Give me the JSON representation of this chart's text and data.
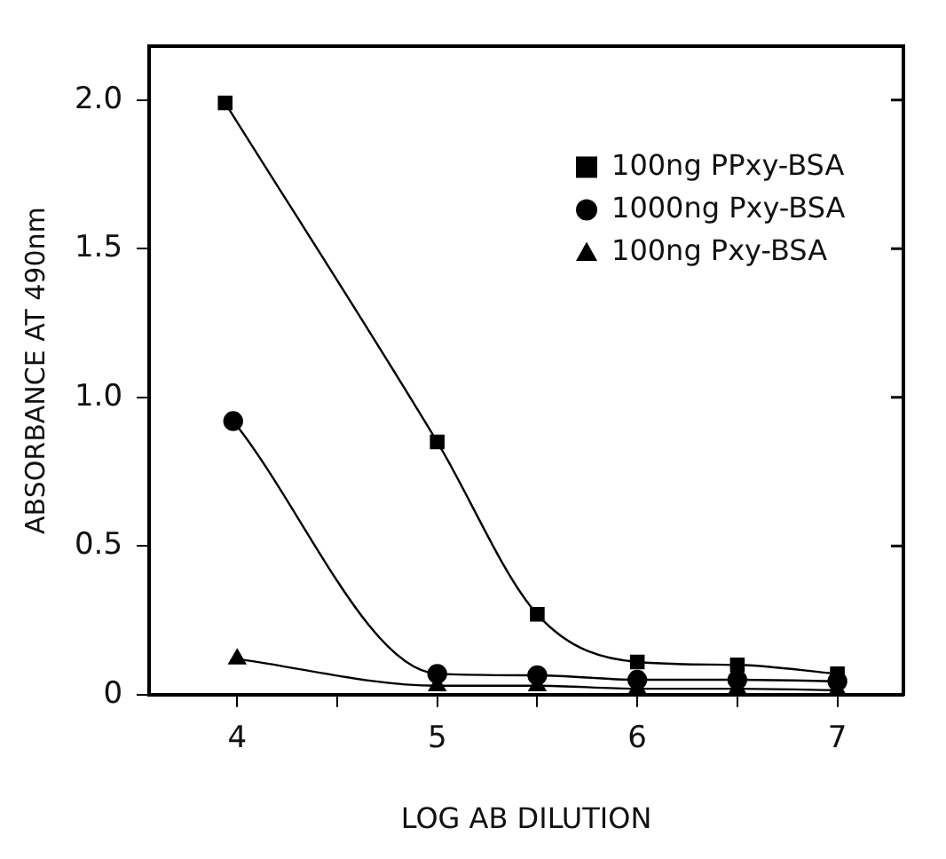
{
  "chart_data": {
    "type": "line",
    "xlabel": "LOG AB DILUTION",
    "ylabel": "ABSORBANCE AT 490nm",
    "xlim": [
      3.56,
      7.33
    ],
    "xticks": [
      4,
      {
        "value": 4.5,
        "label": null
      },
      5,
      {
        "value": 5.5,
        "label": null
      },
      6,
      {
        "value": 6.5,
        "label": null
      },
      7
    ],
    "ylim": [
      0,
      2.18
    ],
    "yticks": [
      {
        "value": 0,
        "label": "0"
      },
      0.5,
      {
        "value": 1,
        "label": "1.0"
      },
      1.5,
      {
        "value": 2,
        "label": "2.0"
      }
    ],
    "grid": false,
    "legend": "top right",
    "line_style": "solid",
    "series": [
      {
        "name": "100ng PPxy-BSA",
        "color": "#000000",
        "marker": "square",
        "x": [
          3.94,
          5,
          5.5,
          6,
          6.5,
          7
        ],
        "values": [
          1.99,
          0.85,
          0.27,
          0.11,
          0.1,
          0.07
        ]
      },
      {
        "name": "1000ng Pxy-BSA",
        "color": "#000000",
        "marker": "circle",
        "x": [
          3.98,
          5,
          5.5,
          6,
          6.5,
          7
        ],
        "values": [
          0.92,
          0.07,
          0.065,
          0.05,
          0.05,
          0.045
        ]
      },
      {
        "name": "100ng Pxy-BSA",
        "color": "#000000",
        "marker": "triangle",
        "x": [
          4,
          5,
          5.5,
          6,
          6.5,
          7
        ],
        "values": [
          0.12,
          0.03,
          0.03,
          0.02,
          0.02,
          0.015
        ]
      }
    ]
  }
}
